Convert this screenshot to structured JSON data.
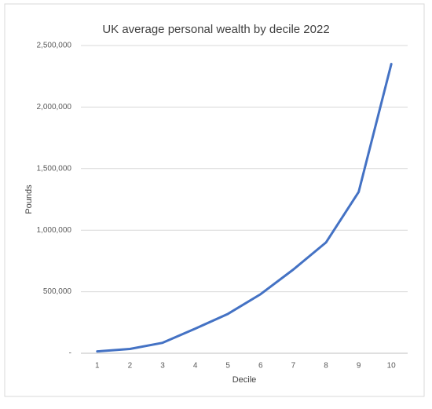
{
  "chart_data": {
    "type": "line",
    "title": "UK average personal wealth by decile 2022",
    "x_label": "Decile",
    "y_label": "Pounds",
    "categories": [
      "1",
      "2",
      "3",
      "4",
      "5",
      "6",
      "7",
      "8",
      "9",
      "10"
    ],
    "series": [
      {
        "name": "Pounds",
        "color": "#4472c4",
        "values": [
          15000,
          35000,
          85000,
          200000,
          320000,
          480000,
          680000,
          900000,
          1310000,
          2350000
        ]
      }
    ],
    "ylim": [
      0,
      2500000
    ],
    "yticks": [
      {
        "value": 0,
        "label": "-"
      },
      {
        "value": 500000,
        "label": "500,000"
      },
      {
        "value": 1000000,
        "label": "1,000,000"
      },
      {
        "value": 1500000,
        "label": "1,500,000"
      },
      {
        "value": 2000000,
        "label": "2,000,000"
      },
      {
        "value": 2500000,
        "label": "2,500,000"
      }
    ],
    "grid": true
  }
}
